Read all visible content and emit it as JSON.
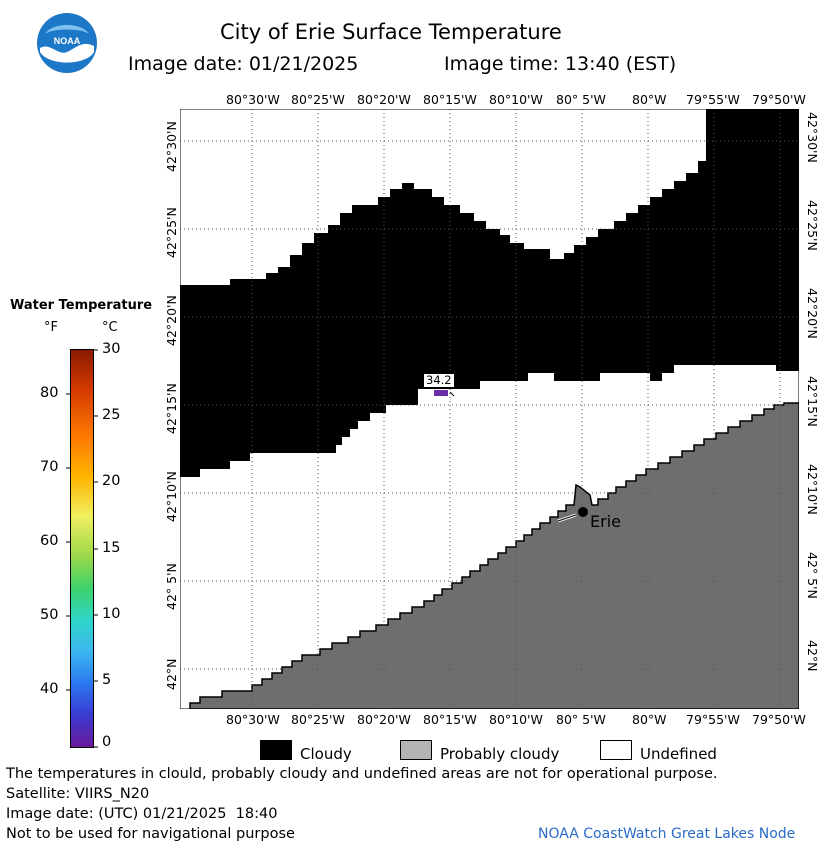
{
  "header": {
    "title": "City of Erie Surface Temperature",
    "image_date": "Image date: 01/21/2025",
    "image_time": "Image time: 13:40 (EST)"
  },
  "logo": {
    "text": "NOAA",
    "icon": "noaa-logo-icon"
  },
  "map": {
    "lon_labels": [
      "80°30'W",
      "80°25'W",
      "80°20'W",
      "80°15'W",
      "80°10'W",
      "80° 5'W",
      "80°W",
      "79°55'W",
      "79°50'W"
    ],
    "lat_labels": [
      "42°30'N",
      "42°25'N",
      "42°20'N",
      "42°15'N",
      "42°10'N",
      "42° 5'N",
      "42°N"
    ],
    "sample_value": "34.2",
    "city_label": "Erie",
    "colors": {
      "cloud": "#000000",
      "probably_cloudy": "#6e6e6e",
      "undefined": "#ffffff",
      "sample": "#6a2fa8"
    }
  },
  "colorbar": {
    "title": "Water Temperature",
    "unit_f": "°F",
    "unit_c": "°C",
    "f_ticks": [
      "80",
      "70",
      "60",
      "50",
      "40"
    ],
    "c_ticks": [
      "30",
      "25",
      "20",
      "15",
      "10",
      "5",
      "0"
    ]
  },
  "legend": {
    "cloudy": "Cloudy",
    "probably_cloudy": "Probably cloudy",
    "undefined": "Undefined"
  },
  "footer": {
    "disclaimer": "The temperatures in clould, probably cloudy and undefined areas are not for operational purpose.",
    "satellite": "Satellite: VIIRS_N20",
    "utc_date": "Image date: (UTC) 01/21/2025  18:40",
    "nav": "Not to be used for navigational purpose",
    "credit": "NOAA CoastWatch Great Lakes Node"
  }
}
